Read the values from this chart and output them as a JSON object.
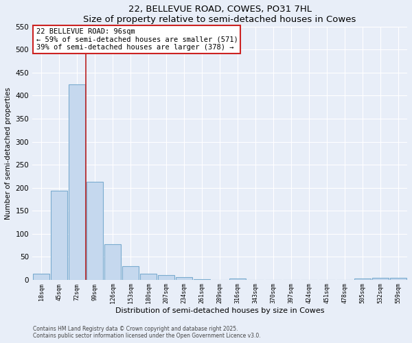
{
  "title": "22, BELLEVUE ROAD, COWES, PO31 7HL",
  "subtitle": "Size of property relative to semi-detached houses in Cowes",
  "xlabel": "Distribution of semi-detached houses by size in Cowes",
  "ylabel": "Number of semi-detached properties",
  "categories": [
    "18sqm",
    "45sqm",
    "72sqm",
    "99sqm",
    "126sqm",
    "153sqm",
    "180sqm",
    "207sqm",
    "234sqm",
    "261sqm",
    "289sqm",
    "316sqm",
    "343sqm",
    "370sqm",
    "397sqm",
    "424sqm",
    "451sqm",
    "478sqm",
    "505sqm",
    "532sqm",
    "559sqm"
  ],
  "values": [
    13,
    193,
    425,
    213,
    77,
    29,
    13,
    10,
    5,
    1,
    0,
    3,
    0,
    0,
    0,
    0,
    0,
    0,
    3,
    4,
    4
  ],
  "bar_color": "#c5d8ee",
  "bar_edge_color": "#7aabcf",
  "ylim": [
    0,
    550
  ],
  "yticks": [
    0,
    50,
    100,
    150,
    200,
    250,
    300,
    350,
    400,
    450,
    500,
    550
  ],
  "red_line_color": "#bb2222",
  "red_line_x": 2.48,
  "annotation_title": "22 BELLEVUE ROAD: 96sqm",
  "annotation_line2": "← 59% of semi-detached houses are smaller (571)",
  "annotation_line3": "39% of semi-detached houses are larger (378) →",
  "annotation_box_color": "#cc2222",
  "footer_line1": "Contains HM Land Registry data © Crown copyright and database right 2025.",
  "footer_line2": "Contains public sector information licensed under the Open Government Licence v3.0.",
  "bg_color": "#e8eef8",
  "plot_bg_color": "#e8eef8",
  "grid_color": "#ffffff"
}
